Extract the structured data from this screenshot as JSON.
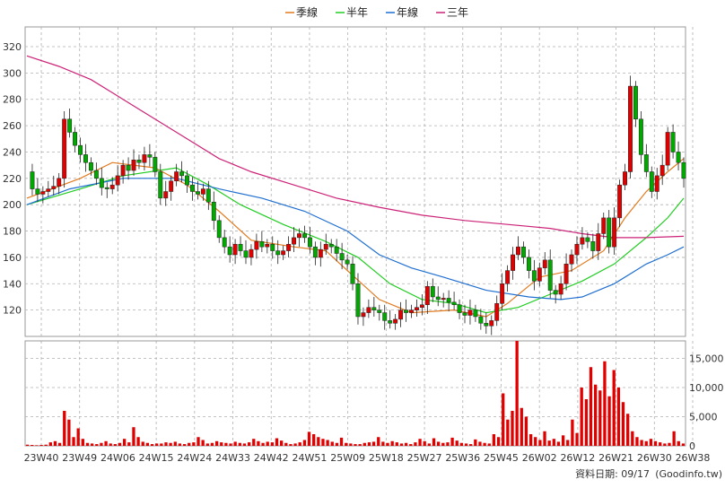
{
  "legend": [
    {
      "label": "季線",
      "color": "#e07b20"
    },
    {
      "label": "半年",
      "color": "#22cc22"
    },
    {
      "label": "年線",
      "color": "#1f6fd0"
    },
    {
      "label": "三年",
      "color": "#cc2277"
    }
  ],
  "footer": {
    "date_label": "資料日期: 09/17",
    "source_label": "(Goodinfo.tw)"
  },
  "colors": {
    "up_candle": "#e00000",
    "down_candle": "#00a800",
    "volume_bar": "#e00000",
    "grid": "#b0b0b0"
  },
  "chart_data": [
    {
      "type": "candlestick",
      "title": "",
      "ylim": [
        100,
        335
      ],
      "yticks": [
        120,
        140,
        160,
        180,
        200,
        220,
        240,
        260,
        280,
        300,
        320
      ],
      "x_ticks": [
        "23W40",
        "23W49",
        "24W06",
        "24W15",
        "24W24",
        "24W33",
        "24W42",
        "24W51",
        "25W09",
        "25W18",
        "25W27",
        "25W36",
        "25W45",
        "26W02",
        "26W12",
        "26W21",
        "26W30",
        "26W38"
      ],
      "grid": true,
      "close_path": [
        [
          0,
          225
        ],
        [
          1,
          212
        ],
        [
          2,
          208
        ],
        [
          3,
          210
        ],
        [
          4,
          212
        ],
        [
          5,
          214
        ],
        [
          6,
          220
        ],
        [
          7,
          265
        ],
        [
          8,
          255
        ],
        [
          9,
          245
        ],
        [
          10,
          238
        ],
        [
          11,
          232
        ],
        [
          12,
          226
        ],
        [
          13,
          220
        ],
        [
          14,
          213
        ],
        [
          15,
          212
        ],
        [
          16,
          215
        ],
        [
          17,
          222
        ],
        [
          18,
          230
        ],
        [
          19,
          226
        ],
        [
          20,
          234
        ],
        [
          21,
          232
        ],
        [
          22,
          238
        ],
        [
          23,
          236
        ],
        [
          24,
          225
        ],
        [
          25,
          205
        ],
        [
          26,
          210
        ],
        [
          27,
          218
        ],
        [
          28,
          225
        ],
        [
          29,
          222
        ],
        [
          30,
          215
        ],
        [
          31,
          210
        ],
        [
          32,
          208
        ],
        [
          33,
          212
        ],
        [
          34,
          202
        ],
        [
          35,
          188
        ],
        [
          36,
          175
        ],
        [
          37,
          168
        ],
        [
          38,
          162
        ],
        [
          39,
          170
        ],
        [
          40,
          165
        ],
        [
          41,
          160
        ],
        [
          42,
          166
        ],
        [
          43,
          172
        ],
        [
          44,
          168
        ],
        [
          45,
          170
        ],
        [
          46,
          165
        ],
        [
          47,
          162
        ],
        [
          48,
          165
        ],
        [
          49,
          170
        ],
        [
          50,
          175
        ],
        [
          51,
          178
        ],
        [
          52,
          175
        ],
        [
          53,
          168
        ],
        [
          54,
          160
        ],
        [
          55,
          166
        ],
        [
          56,
          170
        ],
        [
          57,
          168
        ],
        [
          58,
          163
        ],
        [
          59,
          158
        ],
        [
          60,
          155
        ],
        [
          61,
          140
        ],
        [
          62,
          115
        ],
        [
          63,
          118
        ],
        [
          64,
          122
        ],
        [
          65,
          120
        ],
        [
          66,
          118
        ],
        [
          67,
          112
        ],
        [
          68,
          110
        ],
        [
          69,
          113
        ],
        [
          70,
          120
        ],
        [
          71,
          118
        ],
        [
          72,
          120
        ],
        [
          73,
          122
        ],
        [
          74,
          124
        ],
        [
          75,
          138
        ],
        [
          76,
          130
        ],
        [
          77,
          128
        ],
        [
          78,
          129
        ],
        [
          79,
          126
        ],
        [
          80,
          124
        ],
        [
          81,
          118
        ],
        [
          82,
          116
        ],
        [
          83,
          120
        ],
        [
          84,
          115
        ],
        [
          85,
          110
        ],
        [
          86,
          108
        ],
        [
          87,
          112
        ],
        [
          88,
          125
        ],
        [
          89,
          140
        ],
        [
          90,
          150
        ],
        [
          91,
          162
        ],
        [
          92,
          168
        ],
        [
          93,
          160
        ],
        [
          94,
          150
        ],
        [
          95,
          142
        ],
        [
          96,
          152
        ],
        [
          97,
          158
        ],
        [
          98,
          135
        ],
        [
          99,
          132
        ],
        [
          100,
          140
        ],
        [
          101,
          155
        ],
        [
          102,
          162
        ],
        [
          103,
          170
        ],
        [
          104,
          175
        ],
        [
          105,
          172
        ],
        [
          106,
          165
        ],
        [
          107,
          178
        ],
        [
          108,
          190
        ],
        [
          109,
          168
        ],
        [
          110,
          190
        ],
        [
          111,
          215
        ],
        [
          112,
          225
        ],
        [
          113,
          290
        ],
        [
          114,
          265
        ],
        [
          115,
          238
        ],
        [
          116,
          225
        ],
        [
          117,
          210
        ],
        [
          118,
          222
        ],
        [
          119,
          230
        ],
        [
          120,
          255
        ],
        [
          121,
          240
        ],
        [
          122,
          232
        ],
        [
          123,
          220
        ]
      ],
      "moving_averages": [
        {
          "name": "季線",
          "points": [
            [
              0,
              205
            ],
            [
              10,
              220
            ],
            [
              16,
              232
            ],
            [
              24,
              228
            ],
            [
              30,
              215
            ],
            [
              36,
              195
            ],
            [
              42,
              173
            ],
            [
              50,
              168
            ],
            [
              56,
              165
            ],
            [
              60,
              150
            ],
            [
              66,
              128
            ],
            [
              72,
              118
            ],
            [
              80,
              120
            ],
            [
              86,
              115
            ],
            [
              90,
              125
            ],
            [
              96,
              145
            ],
            [
              102,
              150
            ],
            [
              108,
              165
            ],
            [
              112,
              190
            ],
            [
              116,
              210
            ],
            [
              120,
              225
            ],
            [
              123,
              235
            ]
          ]
        },
        {
          "name": "半年",
          "points": [
            [
              0,
              200
            ],
            [
              10,
              212
            ],
            [
              18,
              222
            ],
            [
              28,
              228
            ],
            [
              34,
              215
            ],
            [
              40,
              200
            ],
            [
              48,
              185
            ],
            [
              56,
              172
            ],
            [
              62,
              160
            ],
            [
              68,
              140
            ],
            [
              74,
              128
            ],
            [
              80,
              125
            ],
            [
              86,
              118
            ],
            [
              92,
              122
            ],
            [
              98,
              132
            ],
            [
              104,
              142
            ],
            [
              110,
              155
            ],
            [
              116,
              175
            ],
            [
              120,
              190
            ],
            [
              123,
              205
            ]
          ]
        },
        {
          "name": "年線",
          "points": [
            [
              0,
              200
            ],
            [
              8,
              212
            ],
            [
              18,
              220
            ],
            [
              28,
              220
            ],
            [
              36,
              212
            ],
            [
              44,
              205
            ],
            [
              52,
              195
            ],
            [
              60,
              180
            ],
            [
              66,
              162
            ],
            [
              72,
              152
            ],
            [
              78,
              145
            ],
            [
              86,
              135
            ],
            [
              94,
              130
            ],
            [
              100,
              128
            ],
            [
              104,
              130
            ],
            [
              110,
              140
            ],
            [
              116,
              155
            ],
            [
              120,
              162
            ],
            [
              123,
              168
            ]
          ]
        },
        {
          "name": "三年",
          "points": [
            [
              0,
              313
            ],
            [
              6,
              305
            ],
            [
              12,
              295
            ],
            [
              18,
              280
            ],
            [
              24,
              265
            ],
            [
              30,
              250
            ],
            [
              36,
              235
            ],
            [
              42,
              225
            ],
            [
              50,
              215
            ],
            [
              58,
              205
            ],
            [
              66,
              198
            ],
            [
              74,
              192
            ],
            [
              82,
              188
            ],
            [
              90,
              185
            ],
            [
              98,
              182
            ],
            [
              104,
              178
            ],
            [
              110,
              175
            ],
            [
              116,
              175
            ],
            [
              123,
              176
            ]
          ]
        }
      ]
    },
    {
      "type": "bar",
      "title": "",
      "ylim": [
        0,
        18000
      ],
      "yticks": [
        0,
        5000,
        10000,
        15000
      ],
      "ytick_labels": [
        "0",
        "5,000",
        "10,000",
        "15,000"
      ],
      "values": [
        200,
        150,
        100,
        150,
        200,
        600,
        800,
        500,
        6000,
        4500,
        1500,
        3000,
        1200,
        500,
        400,
        300,
        500,
        800,
        400,
        300,
        500,
        1200,
        600,
        3200,
        1500,
        700,
        500,
        300,
        400,
        400,
        600,
        500,
        700,
        400,
        300,
        500,
        600,
        1500,
        1000,
        400,
        500,
        800,
        600,
        500,
        400,
        700,
        500,
        400,
        600,
        1200,
        800,
        500,
        700,
        600,
        1300,
        900,
        500,
        300,
        400,
        600,
        1000,
        2400,
        2000,
        1500,
        1200,
        1000,
        700,
        500,
        1400,
        500,
        400,
        300,
        300,
        500,
        600,
        700,
        1500,
        700,
        500,
        800,
        600,
        400,
        500,
        300,
        600,
        1200,
        800,
        400,
        1300,
        700,
        500,
        600,
        1400,
        900,
        500,
        400,
        300,
        1100,
        700,
        500,
        400,
        2000,
        1500,
        9000,
        4500,
        6000,
        18500,
        6500,
        5000,
        2000,
        1500,
        1000,
        2500,
        900,
        1200,
        700,
        1800,
        1000,
        4500,
        2200,
        10000,
        8000,
        13500,
        10500,
        9500,
        14500,
        8500,
        13000,
        10000,
        7500,
        5500,
        2500,
        1500,
        1000,
        800,
        1200,
        800,
        600,
        400,
        500,
        2500,
        800,
        400
      ]
    }
  ]
}
